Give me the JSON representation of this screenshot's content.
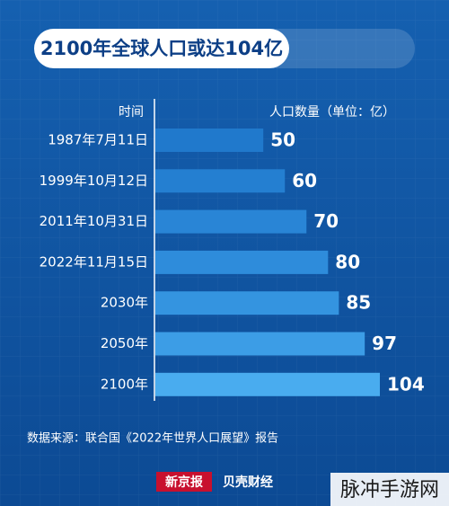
{
  "chart_data": {
    "type": "hbar",
    "title": "2100年全球人口或达104亿",
    "category_label": "时间",
    "value_label": "人口数量（单位：亿）",
    "categories": [
      "1987年7月11日",
      "1999年10月12日",
      "2011年10月31日",
      "2022年11月15日",
      "2030年",
      "2050年",
      "2100年"
    ],
    "values": [
      50,
      60,
      70,
      80,
      85,
      97,
      104
    ],
    "colors": [
      "#2079cc",
      "#247fd1",
      "#2985d6",
      "#2e8cdb",
      "#3494e0",
      "#3c9de6",
      "#49acef"
    ],
    "source": "数据来源：联合国《2022年世界人口展望》报告"
  },
  "branding": {
    "logos": [
      "新京报",
      "贝壳财经"
    ],
    "watermark": "脉冲手游网"
  }
}
